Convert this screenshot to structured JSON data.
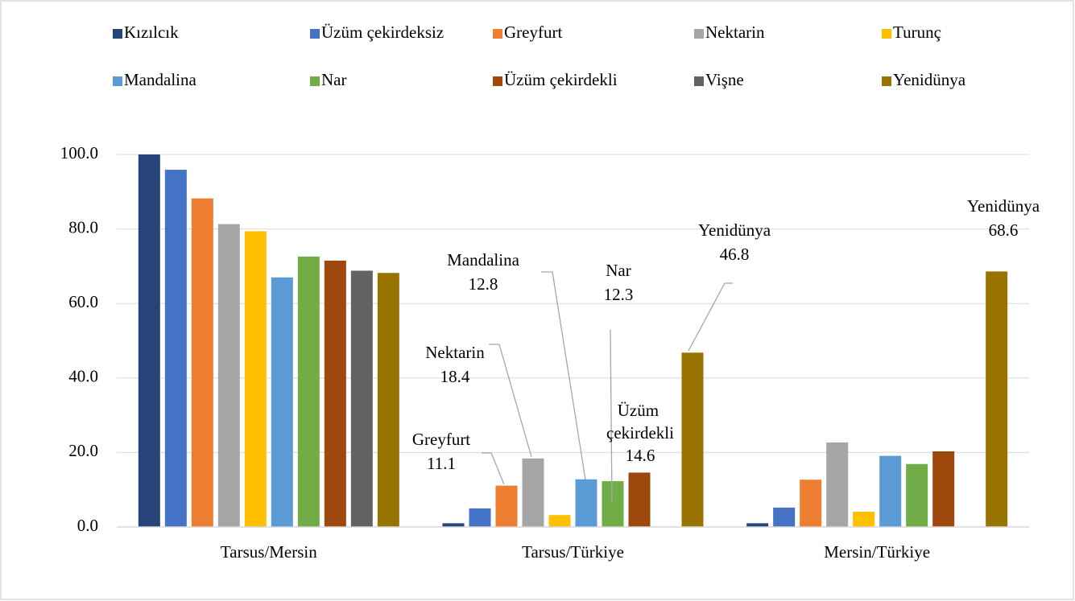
{
  "chart_data": {
    "type": "bar",
    "categories": [
      "Tarsus/Mersin",
      "Tarsus/Türkiye",
      "Mersin/Türkiye"
    ],
    "series": [
      {
        "name": "Kızılcık",
        "color": "#264478",
        "values": [
          100,
          1.0,
          1.0
        ]
      },
      {
        "name": "Üzüm çekirdeksiz",
        "color": "#4472c4",
        "values": [
          95.9,
          5.0,
          5.2
        ]
      },
      {
        "name": "Greyfurt",
        "color": "#ed7d31",
        "values": [
          88.2,
          11.1,
          12.7
        ],
        "value_labels": [
          null,
          "11.1",
          null
        ]
      },
      {
        "name": "Nektarin",
        "color": "#a5a5a5",
        "values": [
          81.3,
          18.4,
          22.7
        ],
        "value_labels": [
          null,
          "18.4",
          null
        ]
      },
      {
        "name": "Turunç",
        "color": "#ffc000",
        "values": [
          79.4,
          3.2,
          4.1
        ]
      },
      {
        "name": "Mandalina",
        "color": "#5b9bd5",
        "values": [
          67.0,
          12.8,
          19.1
        ],
        "value_labels": [
          null,
          "12.8",
          null
        ]
      },
      {
        "name": "Nar",
        "color": "#70ad47",
        "values": [
          72.6,
          12.3,
          16.9
        ],
        "value_labels": [
          null,
          "12.3",
          null
        ]
      },
      {
        "name": "Üzüm çekirdekli",
        "color": "#9e480e",
        "values": [
          71.5,
          14.6,
          20.3
        ],
        "value_labels": [
          null,
          "14.6",
          null
        ]
      },
      {
        "name": "Vişne",
        "color": "#636363",
        "values": [
          68.8,
          null,
          null
        ]
      },
      {
        "name": "Yenidünya",
        "color": "#997300",
        "values": [
          68.2,
          46.8,
          68.6
        ],
        "value_labels": [
          null,
          "46.8",
          "68.6"
        ]
      }
    ],
    "ylim": [
      0,
      100
    ],
    "yticks": [
      {
        "value": 0,
        "label": "0.0"
      },
      {
        "value": 20,
        "label": "20.0"
      },
      {
        "value": 40,
        "label": "40.0"
      },
      {
        "value": 60,
        "label": "60.0"
      },
      {
        "value": 80,
        "label": "80.0"
      },
      {
        "value": 100,
        "label": "100.0"
      }
    ],
    "grid": true,
    "legend": "top"
  }
}
